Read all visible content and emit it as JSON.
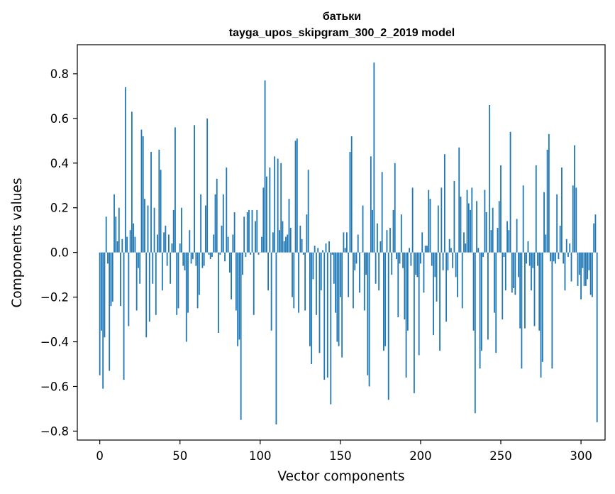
{
  "chart_data": {
    "type": "bar",
    "title": "батьки",
    "subtitle": "tayga_upos_skipgram_300_2_2019 model",
    "xlabel": "Vector components",
    "ylabel": "Components values",
    "xlim": [
      -14,
      315
    ],
    "ylim": [
      -0.84,
      0.93
    ],
    "xticks": [
      0,
      50,
      100,
      150,
      200,
      250,
      300
    ],
    "xtick_labels": [
      "0",
      "50",
      "100",
      "150",
      "200",
      "250",
      "300"
    ],
    "yticks": [
      -0.8,
      -0.6,
      -0.4,
      -0.2,
      0.0,
      0.2,
      0.4,
      0.6,
      0.8
    ],
    "ytick_labels": [
      "−0.8",
      "−0.6",
      "−0.4",
      "−0.2",
      "0.0",
      "0.2",
      "0.4",
      "0.6",
      "0.8"
    ],
    "grid": false,
    "bar_color": "#1f77b4",
    "values": [
      -0.55,
      -0.35,
      -0.61,
      -0.38,
      0.16,
      -0.05,
      -0.53,
      -0.24,
      -0.22,
      0.26,
      0.16,
      0.05,
      0.2,
      -0.24,
      0.06,
      -0.57,
      0.74,
      0.07,
      -0.33,
      0.1,
      0.63,
      0.13,
      0.07,
      -0.26,
      -0.07,
      -0.14,
      0.55,
      0.52,
      0.24,
      -0.38,
      0.21,
      -0.31,
      0.45,
      -0.14,
      0.2,
      -0.28,
      0.08,
      0.46,
      0.37,
      -0.17,
      0.09,
      0.12,
      -0.06,
      0.08,
      -0.14,
      0.04,
      0.19,
      0.56,
      -0.28,
      -0.25,
      0.04,
      0.2,
      -0.06,
      -0.08,
      -0.4,
      -0.27,
      0.1,
      -0.05,
      -0.03,
      0.57,
      -0.06,
      -0.25,
      -0.19,
      0.26,
      -0.07,
      -0.06,
      0.21,
      0.6,
      -0.01,
      -0.03,
      -0.02,
      0.08,
      0.26,
      0.33,
      -0.36,
      -0.01,
      0.12,
      0.26,
      -0.04,
      0.38,
      0.07,
      -0.09,
      -0.21,
      0.08,
      0.18,
      -0.26,
      -0.42,
      -0.39,
      -0.75,
      -0.1,
      0.16,
      -0.02,
      0.18,
      0.19,
      -0.01,
      0.19,
      -0.28,
      0.14,
      0.19,
      -0.01,
      0.0,
      0.07,
      0.29,
      0.77,
      0.34,
      -0.17,
      0.38,
      -0.35,
      0.09,
      0.43,
      -0.77,
      0.42,
      0.1,
      0.4,
      0.14,
      0.05,
      0.07,
      0.08,
      0.24,
      0.11,
      -0.2,
      -0.25,
      0.5,
      0.51,
      -0.27,
      0.12,
      0.06,
      -0.01,
      -0.26,
      0.17,
      0.37,
      -0.42,
      -0.5,
      -0.12,
      0.03,
      -0.28,
      0.02,
      -0.45,
      -0.17,
      0.01,
      -0.57,
      0.04,
      -0.56,
      0.05,
      -0.68,
      -0.01,
      -0.14,
      -0.27,
      -0.4,
      -0.42,
      -0.2,
      -0.47,
      0.09,
      0.02,
      0.09,
      -0.2,
      0.45,
      0.52,
      -0.25,
      -0.08,
      -0.05,
      0.08,
      -0.18,
      0.0,
      0.21,
      -0.26,
      -0.1,
      -0.55,
      -0.6,
      0.43,
      0.19,
      0.85,
      -0.14,
      0.13,
      -0.17,
      0.05,
      0.36,
      -0.44,
      -0.42,
      0.1,
      -0.66,
      0.11,
      -0.1,
      0.19,
      0.4,
      -0.03,
      -0.29,
      -0.05,
      0.17,
      -0.07,
      -0.3,
      -0.56,
      -0.35,
      0.02,
      -0.06,
      0.29,
      -0.63,
      -0.1,
      -0.11,
      -0.46,
      -0.05,
      0.09,
      -0.18,
      0.03,
      0.03,
      0.28,
      0.24,
      -0.06,
      -0.37,
      -0.11,
      -0.22,
      0.21,
      -0.44,
      0.29,
      -0.08,
      0.44,
      -0.31,
      -0.08,
      0.06,
      0.02,
      -0.07,
      0.32,
      -0.11,
      -0.2,
      0.47,
      0.25,
      -0.25,
      0.09,
      0.04,
      0.28,
      0.22,
      0.19,
      0.29,
      -0.35,
      -0.72,
      0.23,
      0.02,
      -0.52,
      -0.44,
      -0.02,
      0.28,
      0.18,
      -0.39,
      0.66,
      0.1,
      0.2,
      -0.27,
      -0.45,
      0.11,
      0.23,
      0.39,
      -0.3,
      -0.02,
      -0.17,
      0.14,
      0.1,
      0.54,
      -0.18,
      -0.16,
      -0.19,
      0.15,
      -0.11,
      -0.34,
      -0.52,
      0.3,
      -0.34,
      -0.05,
      0.05,
      -0.06,
      -0.17,
      -0.07,
      -0.33,
      0.39,
      -0.06,
      -0.35,
      -0.56,
      -0.49,
      0.27,
      0.08,
      0.46,
      0.53,
      -0.04,
      -0.52,
      -0.04,
      -0.05,
      0.26,
      -0.03,
      0.12,
      0.38,
      -0.05,
      -0.17,
      0.06,
      -0.02,
      0.04,
      -0.13,
      0.3,
      0.48,
      0.29,
      -0.15,
      -0.1,
      -0.21,
      -0.07,
      -0.15,
      -0.15,
      -0.12,
      -0.08,
      -0.19,
      -0.2,
      0.13,
      0.17,
      -0.76
    ]
  }
}
